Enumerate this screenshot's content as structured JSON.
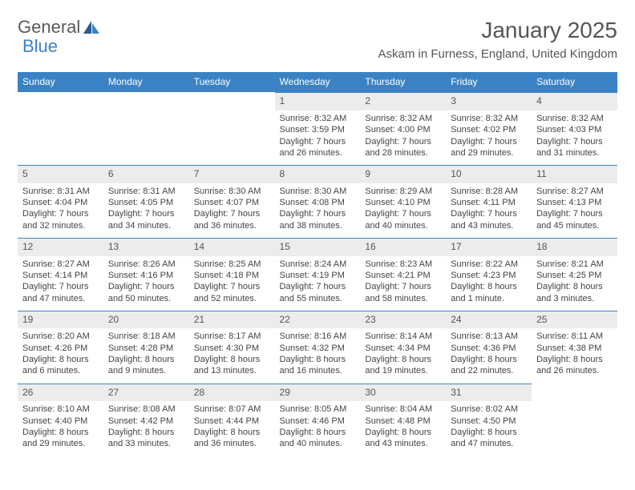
{
  "logo": {
    "text1": "General",
    "text2": "Blue"
  },
  "title": "January 2025",
  "location": "Askam in Furness, England, United Kingdom",
  "colors": {
    "header_bg": "#3b82c4",
    "header_text": "#ffffff",
    "daynum_bg": "#ececec",
    "body_text": "#444444",
    "title_text": "#555555"
  },
  "weekdays": [
    "Sunday",
    "Monday",
    "Tuesday",
    "Wednesday",
    "Thursday",
    "Friday",
    "Saturday"
  ],
  "weeks": [
    [
      {
        "n": "",
        "sr": "",
        "ss": "",
        "dl": ""
      },
      {
        "n": "",
        "sr": "",
        "ss": "",
        "dl": ""
      },
      {
        "n": "",
        "sr": "",
        "ss": "",
        "dl": ""
      },
      {
        "n": "1",
        "sr": "Sunrise: 8:32 AM",
        "ss": "Sunset: 3:59 PM",
        "dl": "Daylight: 7 hours and 26 minutes."
      },
      {
        "n": "2",
        "sr": "Sunrise: 8:32 AM",
        "ss": "Sunset: 4:00 PM",
        "dl": "Daylight: 7 hours and 28 minutes."
      },
      {
        "n": "3",
        "sr": "Sunrise: 8:32 AM",
        "ss": "Sunset: 4:02 PM",
        "dl": "Daylight: 7 hours and 29 minutes."
      },
      {
        "n": "4",
        "sr": "Sunrise: 8:32 AM",
        "ss": "Sunset: 4:03 PM",
        "dl": "Daylight: 7 hours and 31 minutes."
      }
    ],
    [
      {
        "n": "5",
        "sr": "Sunrise: 8:31 AM",
        "ss": "Sunset: 4:04 PM",
        "dl": "Daylight: 7 hours and 32 minutes."
      },
      {
        "n": "6",
        "sr": "Sunrise: 8:31 AM",
        "ss": "Sunset: 4:05 PM",
        "dl": "Daylight: 7 hours and 34 minutes."
      },
      {
        "n": "7",
        "sr": "Sunrise: 8:30 AM",
        "ss": "Sunset: 4:07 PM",
        "dl": "Daylight: 7 hours and 36 minutes."
      },
      {
        "n": "8",
        "sr": "Sunrise: 8:30 AM",
        "ss": "Sunset: 4:08 PM",
        "dl": "Daylight: 7 hours and 38 minutes."
      },
      {
        "n": "9",
        "sr": "Sunrise: 8:29 AM",
        "ss": "Sunset: 4:10 PM",
        "dl": "Daylight: 7 hours and 40 minutes."
      },
      {
        "n": "10",
        "sr": "Sunrise: 8:28 AM",
        "ss": "Sunset: 4:11 PM",
        "dl": "Daylight: 7 hours and 43 minutes."
      },
      {
        "n": "11",
        "sr": "Sunrise: 8:27 AM",
        "ss": "Sunset: 4:13 PM",
        "dl": "Daylight: 7 hours and 45 minutes."
      }
    ],
    [
      {
        "n": "12",
        "sr": "Sunrise: 8:27 AM",
        "ss": "Sunset: 4:14 PM",
        "dl": "Daylight: 7 hours and 47 minutes."
      },
      {
        "n": "13",
        "sr": "Sunrise: 8:26 AM",
        "ss": "Sunset: 4:16 PM",
        "dl": "Daylight: 7 hours and 50 minutes."
      },
      {
        "n": "14",
        "sr": "Sunrise: 8:25 AM",
        "ss": "Sunset: 4:18 PM",
        "dl": "Daylight: 7 hours and 52 minutes."
      },
      {
        "n": "15",
        "sr": "Sunrise: 8:24 AM",
        "ss": "Sunset: 4:19 PM",
        "dl": "Daylight: 7 hours and 55 minutes."
      },
      {
        "n": "16",
        "sr": "Sunrise: 8:23 AM",
        "ss": "Sunset: 4:21 PM",
        "dl": "Daylight: 7 hours and 58 minutes."
      },
      {
        "n": "17",
        "sr": "Sunrise: 8:22 AM",
        "ss": "Sunset: 4:23 PM",
        "dl": "Daylight: 8 hours and 1 minute."
      },
      {
        "n": "18",
        "sr": "Sunrise: 8:21 AM",
        "ss": "Sunset: 4:25 PM",
        "dl": "Daylight: 8 hours and 3 minutes."
      }
    ],
    [
      {
        "n": "19",
        "sr": "Sunrise: 8:20 AM",
        "ss": "Sunset: 4:26 PM",
        "dl": "Daylight: 8 hours and 6 minutes."
      },
      {
        "n": "20",
        "sr": "Sunrise: 8:18 AM",
        "ss": "Sunset: 4:28 PM",
        "dl": "Daylight: 8 hours and 9 minutes."
      },
      {
        "n": "21",
        "sr": "Sunrise: 8:17 AM",
        "ss": "Sunset: 4:30 PM",
        "dl": "Daylight: 8 hours and 13 minutes."
      },
      {
        "n": "22",
        "sr": "Sunrise: 8:16 AM",
        "ss": "Sunset: 4:32 PM",
        "dl": "Daylight: 8 hours and 16 minutes."
      },
      {
        "n": "23",
        "sr": "Sunrise: 8:14 AM",
        "ss": "Sunset: 4:34 PM",
        "dl": "Daylight: 8 hours and 19 minutes."
      },
      {
        "n": "24",
        "sr": "Sunrise: 8:13 AM",
        "ss": "Sunset: 4:36 PM",
        "dl": "Daylight: 8 hours and 22 minutes."
      },
      {
        "n": "25",
        "sr": "Sunrise: 8:11 AM",
        "ss": "Sunset: 4:38 PM",
        "dl": "Daylight: 8 hours and 26 minutes."
      }
    ],
    [
      {
        "n": "26",
        "sr": "Sunrise: 8:10 AM",
        "ss": "Sunset: 4:40 PM",
        "dl": "Daylight: 8 hours and 29 minutes."
      },
      {
        "n": "27",
        "sr": "Sunrise: 8:08 AM",
        "ss": "Sunset: 4:42 PM",
        "dl": "Daylight: 8 hours and 33 minutes."
      },
      {
        "n": "28",
        "sr": "Sunrise: 8:07 AM",
        "ss": "Sunset: 4:44 PM",
        "dl": "Daylight: 8 hours and 36 minutes."
      },
      {
        "n": "29",
        "sr": "Sunrise: 8:05 AM",
        "ss": "Sunset: 4:46 PM",
        "dl": "Daylight: 8 hours and 40 minutes."
      },
      {
        "n": "30",
        "sr": "Sunrise: 8:04 AM",
        "ss": "Sunset: 4:48 PM",
        "dl": "Daylight: 8 hours and 43 minutes."
      },
      {
        "n": "31",
        "sr": "Sunrise: 8:02 AM",
        "ss": "Sunset: 4:50 PM",
        "dl": "Daylight: 8 hours and 47 minutes."
      },
      {
        "n": "",
        "sr": "",
        "ss": "",
        "dl": ""
      }
    ]
  ]
}
